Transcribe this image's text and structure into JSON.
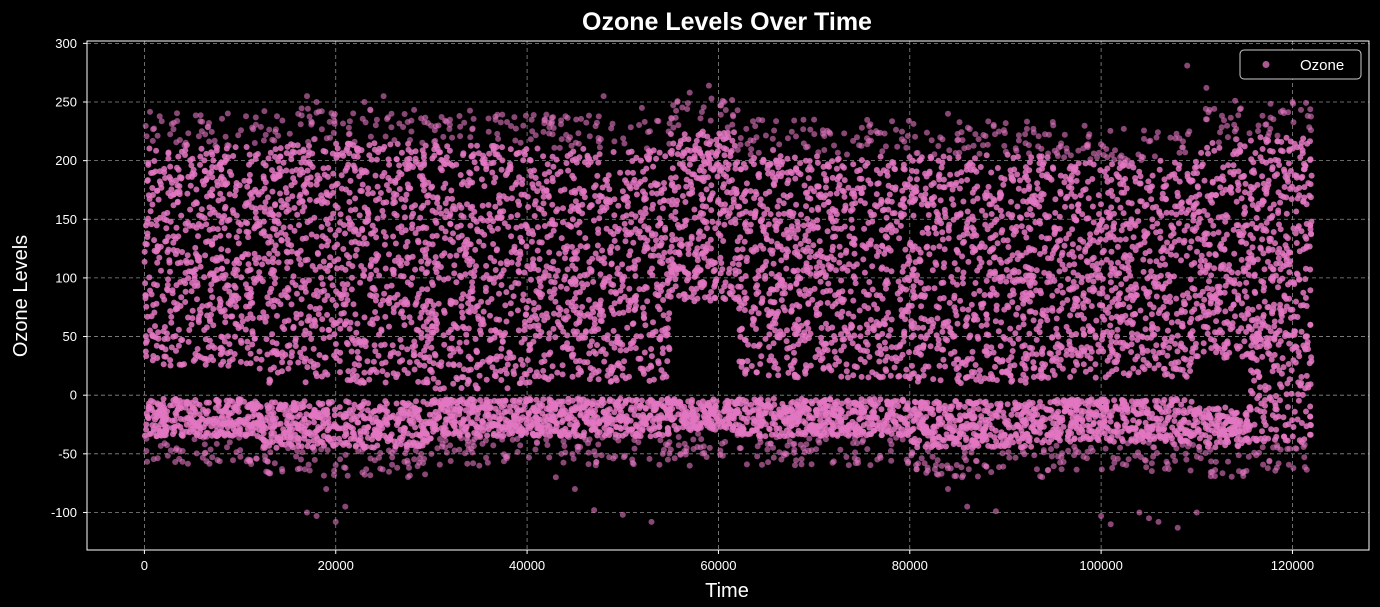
{
  "chart_data": {
    "type": "scatter",
    "title": "Ozone Levels Over Time",
    "xlabel": "Time",
    "ylabel": "Ozone Levels",
    "xlim": [
      -6000,
      128000
    ],
    "ylim": [
      -132,
      302
    ],
    "xticks": [
      0,
      20000,
      40000,
      60000,
      80000,
      100000,
      120000
    ],
    "yticks": [
      -100,
      -50,
      0,
      50,
      100,
      150,
      200,
      250,
      300
    ],
    "grid": true,
    "legend_position": "top-right",
    "series": [
      {
        "name": "Ozone",
        "color": "#e377c2",
        "marker": "circle",
        "alpha": 0.6,
        "x_range": [
          0,
          122000
        ],
        "bands": [
          {
            "x_start": 0,
            "x_end": 12000,
            "upper_min": 25,
            "upper_max": 212,
            "lower_min": -35,
            "lower_max": -3
          },
          {
            "x_start": 12000,
            "x_end": 30000,
            "upper_min": 10,
            "upper_max": 215,
            "lower_min": -45,
            "lower_max": -5
          },
          {
            "x_start": 30000,
            "x_end": 42000,
            "upper_min": 5,
            "upper_max": 213,
            "lower_min": -35,
            "lower_max": -3
          },
          {
            "x_start": 42000,
            "x_end": 55000,
            "upper_min": 10,
            "upper_max": 210,
            "lower_min": -35,
            "lower_max": -3
          },
          {
            "x_start": 55000,
            "x_end": 62000,
            "upper_min": 80,
            "upper_max": 225,
            "lower_min": -30,
            "lower_max": -3
          },
          {
            "x_start": 62000,
            "x_end": 80000,
            "upper_min": 15,
            "upper_max": 205,
            "lower_min": -35,
            "lower_max": -3
          },
          {
            "x_start": 80000,
            "x_end": 95000,
            "upper_min": 10,
            "upper_max": 205,
            "lower_min": -45,
            "lower_max": -5
          },
          {
            "x_start": 95000,
            "x_end": 110000,
            "upper_min": 15,
            "upper_max": 200,
            "lower_min": -40,
            "lower_max": -3
          },
          {
            "x_start": 110000,
            "x_end": 115500,
            "upper_min": 30,
            "upper_max": 215,
            "lower_min": -45,
            "lower_max": -10
          },
          {
            "x_start": 115500,
            "x_end": 122000,
            "upper_min": 40,
            "upper_max": 220,
            "lower_min": -40,
            "lower_max": 60
          }
        ],
        "outliers": [
          [
            17000,
            -100
          ],
          [
            18000,
            -103
          ],
          [
            20000,
            -108
          ],
          [
            21000,
            -95
          ],
          [
            19000,
            -80
          ],
          [
            35000,
            -60
          ],
          [
            43000,
            -70
          ],
          [
            45000,
            -80
          ],
          [
            47000,
            -98
          ],
          [
            50000,
            -102
          ],
          [
            53000,
            -108
          ],
          [
            57000,
            -60
          ],
          [
            84000,
            -80
          ],
          [
            86000,
            -95
          ],
          [
            89000,
            -99
          ],
          [
            100000,
            -103
          ],
          [
            101000,
            -110
          ],
          [
            104000,
            -100
          ],
          [
            105000,
            -105
          ],
          [
            106000,
            -108
          ],
          [
            108000,
            -113
          ],
          [
            110000,
            -100
          ],
          [
            17000,
            255
          ],
          [
            18000,
            250
          ],
          [
            23000,
            250
          ],
          [
            25000,
            255
          ],
          [
            48000,
            255
          ],
          [
            52000,
            245
          ],
          [
            57000,
            258
          ],
          [
            59000,
            264
          ],
          [
            62000,
            243
          ],
          [
            84000,
            240
          ],
          [
            109000,
            281
          ],
          [
            111000,
            262
          ],
          [
            114000,
            251
          ],
          [
            120000,
            250
          ],
          [
            6000,
            225
          ],
          [
            75000,
            228
          ],
          [
            95000,
            230
          ],
          [
            70000,
            235
          ]
        ]
      }
    ]
  }
}
